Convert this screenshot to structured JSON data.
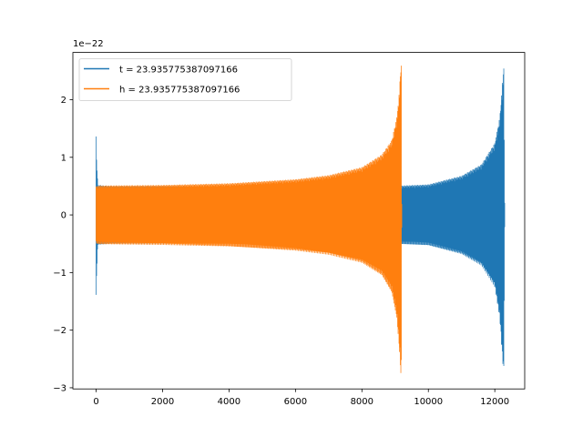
{
  "chart_data": {
    "type": "line",
    "scale_label": "1e−22",
    "xlim": [
      -700,
      12900
    ],
    "ylim": [
      -3.02,
      2.82
    ],
    "xticks": [
      0,
      2000,
      4000,
      6000,
      8000,
      10000,
      12000
    ],
    "xtick_labels": [
      "0",
      "2000",
      "4000",
      "6000",
      "8000",
      "10000",
      "12000"
    ],
    "yticks": [
      -3,
      -2,
      -1,
      0,
      1,
      2
    ],
    "ytick_labels": [
      "−3",
      "−2",
      "−1",
      "0",
      "1",
      "2"
    ],
    "legend_position": "upper-left",
    "series": [
      {
        "name": "t = 23.935775387097166",
        "color": "#1f77b4",
        "envelope": {
          "x": [
            0,
            5,
            50,
            500,
            2000,
            4000,
            6000,
            8000,
            10000,
            11000,
            11600,
            12000,
            12150,
            12230,
            12270,
            12300
          ],
          "upper": [
            1.38,
            1.1,
            0.52,
            0.5,
            0.5,
            0.48,
            0.48,
            0.48,
            0.53,
            0.68,
            0.88,
            1.25,
            1.7,
            2.3,
            2.6,
            0.0
          ],
          "lower": [
            -1.52,
            -1.2,
            -0.52,
            -0.5,
            -0.5,
            -0.48,
            -0.48,
            -0.48,
            -0.53,
            -0.68,
            -0.88,
            -1.25,
            -1.8,
            -2.5,
            -2.77,
            0.0
          ]
        }
      },
      {
        "name": "h = 23.935775387097166",
        "color": "#ff7f0e",
        "envelope": {
          "x": [
            0,
            100,
            2000,
            4000,
            6000,
            7000,
            8000,
            8600,
            8900,
            9050,
            9120,
            9170,
            9190,
            9200,
            12300
          ],
          "upper": [
            0.5,
            0.51,
            0.52,
            0.55,
            0.62,
            0.69,
            0.83,
            1.05,
            1.3,
            1.7,
            2.1,
            2.6,
            2.6,
            0.0,
            0.0
          ],
          "lower": [
            -0.5,
            -0.51,
            -0.52,
            -0.55,
            -0.62,
            -0.69,
            -0.83,
            -1.05,
            -1.35,
            -1.8,
            -2.3,
            -2.77,
            -2.77,
            0.0,
            0.0
          ]
        }
      }
    ]
  }
}
